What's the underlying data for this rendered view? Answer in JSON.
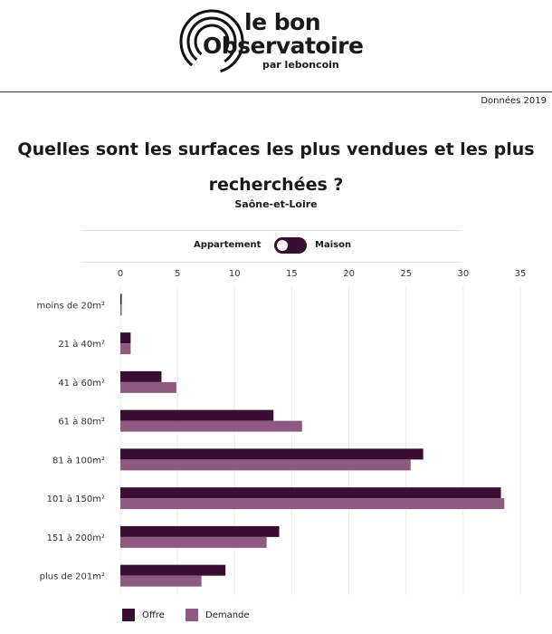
{
  "brand": {
    "line1": "le bon",
    "line2": "Observatoire",
    "line3": "par leboncoin"
  },
  "year_note": "Données 2019",
  "toggle": {
    "left_label": "Appartement",
    "right_label": "Maison",
    "selected": "Maison"
  },
  "colors": {
    "offre": "#3a0d33",
    "demande": "#8e5a80",
    "toggle": "#3a0d33"
  },
  "chart_data": {
    "type": "bar",
    "orientation": "horizontal",
    "title": "Quelles sont les surfaces les plus vendues et les plus recherchées ?",
    "subtitle": "Saône-et-Loire",
    "categories": [
      "moins de 20m²",
      "21 à 40m²",
      "41 à 60m²",
      "61 à 80m²",
      "81 à 100m²",
      "101 à 150m²",
      "151 à 200m²",
      "plus de 201m²"
    ],
    "series": [
      {
        "name": "Offre",
        "values": [
          0.1,
          0.9,
          3.6,
          13.4,
          26.5,
          33.3,
          13.9,
          9.2
        ]
      },
      {
        "name": "Demande",
        "values": [
          0.1,
          0.9,
          4.9,
          15.9,
          25.4,
          33.6,
          12.8,
          7.1
        ]
      }
    ],
    "xlim": [
      0,
      35
    ],
    "ticks": [
      0,
      5,
      10,
      15,
      20,
      25,
      30,
      35
    ],
    "grid": true,
    "legend_position": "bottom-left"
  }
}
